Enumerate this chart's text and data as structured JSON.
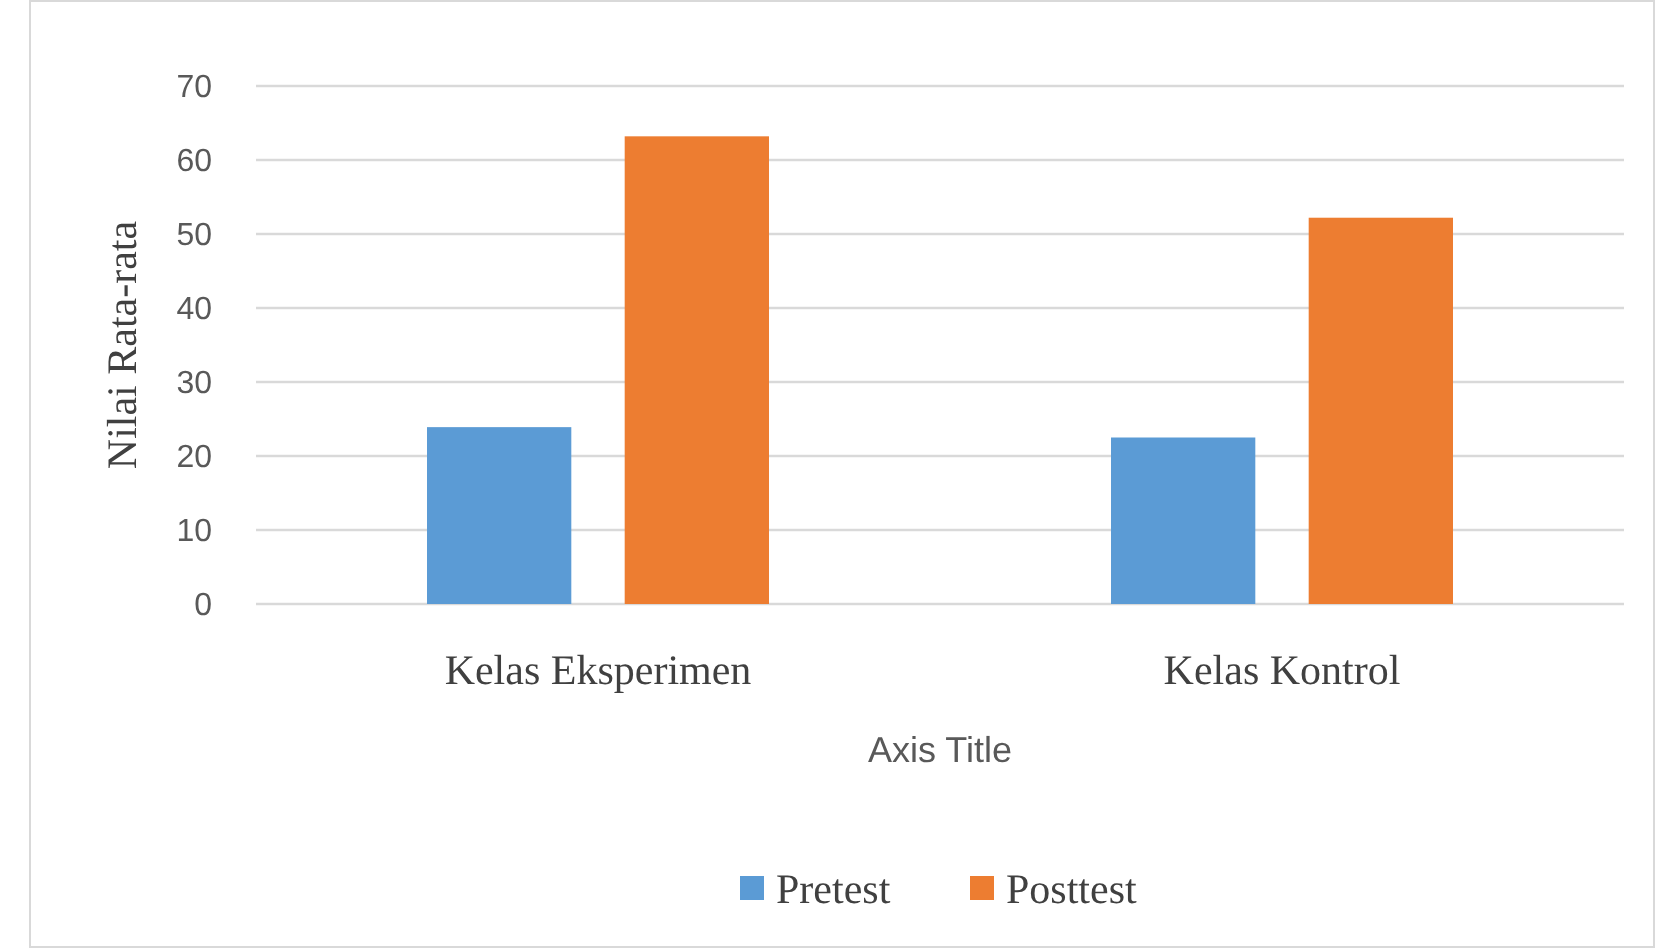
{
  "chart_data": {
    "type": "bar",
    "xlabel": "Axis Title",
    "ylabel": "Nilai Rata-rata",
    "categories": [
      "Kelas Eksperimen",
      "Kelas Kontrol"
    ],
    "series": [
      {
        "name": "Pretest",
        "color": "#5b9bd5",
        "values": [
          23.9,
          22.5
        ]
      },
      {
        "name": "Posttest",
        "color": "#ed7d31",
        "values": [
          63.2,
          52.2
        ]
      }
    ],
    "ylim": [
      0,
      70
    ],
    "yticks": [
      0,
      10,
      20,
      30,
      40,
      50,
      60,
      70
    ],
    "grid": "y",
    "legend": "bottom"
  }
}
